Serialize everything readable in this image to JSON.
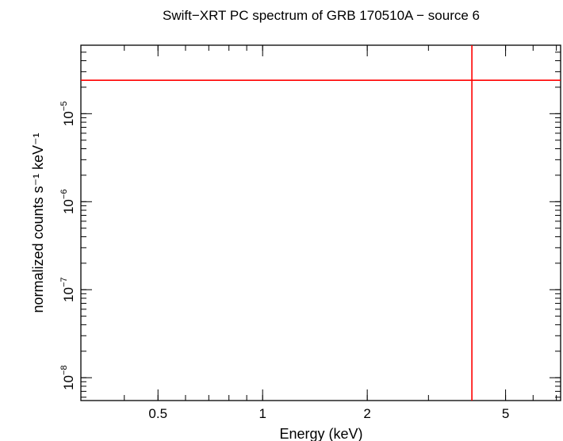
{
  "chart_data": {
    "type": "scatter",
    "title": "Swift−XRT PC spectrum of GRB 170510A − source 6",
    "xlabel": "Energy (keV)",
    "ylabel": "normalized counts s⁻¹ keV⁻¹",
    "x_scale": "log",
    "y_scale": "log",
    "xlim": [
      0.3,
      7.2
    ],
    "ylim": [
      5.5e-09,
      6e-05
    ],
    "x_ticks": [
      {
        "value": 0.5,
        "label": "0.5"
      },
      {
        "value": 1,
        "label": "1"
      },
      {
        "value": 2,
        "label": "2"
      },
      {
        "value": 5,
        "label": "5"
      }
    ],
    "y_ticks": [
      {
        "value": 1e-08,
        "base": "10",
        "exp": "−8"
      },
      {
        "value": 1e-07,
        "base": "10",
        "exp": "−7"
      },
      {
        "value": 1e-06,
        "base": "10",
        "exp": "−6"
      },
      {
        "value": 1e-05,
        "base": "10",
        "exp": "−5"
      }
    ],
    "series": [
      {
        "color": "#ff0000",
        "points": [
          {
            "x": 4.0,
            "y": 2.4e-05,
            "x_err": [
              0.3,
              7.2
            ],
            "y_err": [
              5.5e-09,
              6e-05
            ]
          }
        ]
      }
    ],
    "grid": false
  }
}
